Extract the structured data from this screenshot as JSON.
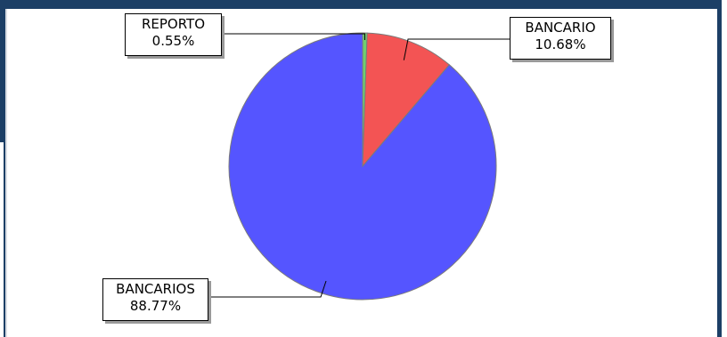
{
  "chart_data": {
    "type": "pie",
    "title": "",
    "slices": [
      {
        "label": "REPORTO",
        "value": 0.55,
        "value_label": "0.55%",
        "color": "#6fcf6f"
      },
      {
        "label": "BANCARIO",
        "value": 10.68,
        "value_label": "10.68%",
        "color": "#f35454"
      },
      {
        "label": "BANCARIOS",
        "value": 88.77,
        "value_label": "88.77%",
        "color": "#5555ff"
      }
    ],
    "start": "top",
    "direction": "clockwise",
    "legend": "none"
  },
  "colors": {
    "header": "#1c3f66",
    "slice_border": "#7a7a7a"
  }
}
